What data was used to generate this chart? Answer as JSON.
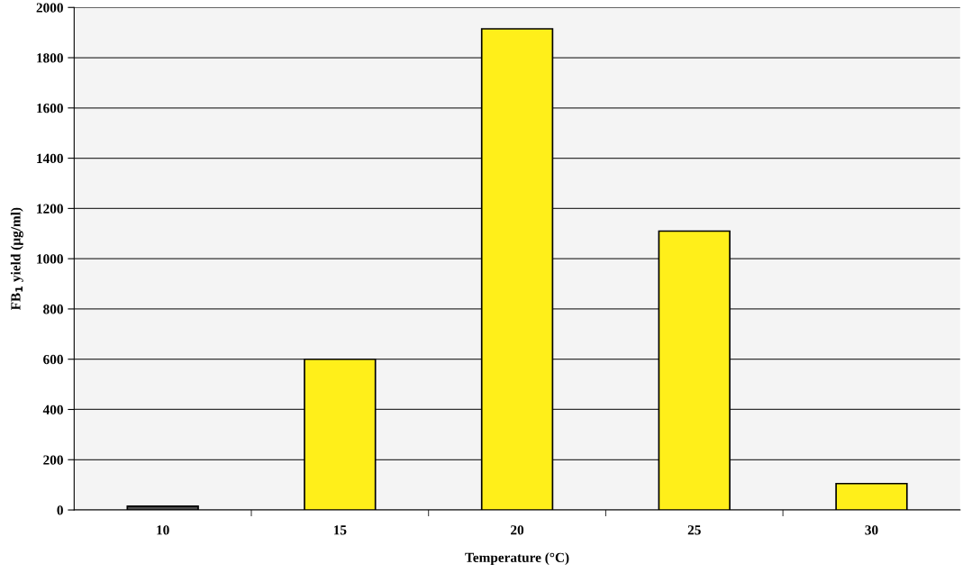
{
  "chart_data": {
    "type": "bar",
    "xlabel": "Temperature (°C)",
    "ylabel": "FB$_{1}$ yield (µg/ml)",
    "categories": [
      "10",
      "15",
      "20",
      "25",
      "30"
    ],
    "values": [
      15,
      600,
      1915,
      1110,
      105
    ],
    "colors": [
      "#4d4d4d",
      "#ffef1a",
      "#ffef1a",
      "#ffef1a",
      "#ffef1a"
    ],
    "ylim": [
      0,
      2000
    ],
    "yticks": [
      0,
      200,
      400,
      600,
      800,
      1000,
      1200,
      1400,
      1600,
      1800,
      2000
    ],
    "grid": "y"
  }
}
